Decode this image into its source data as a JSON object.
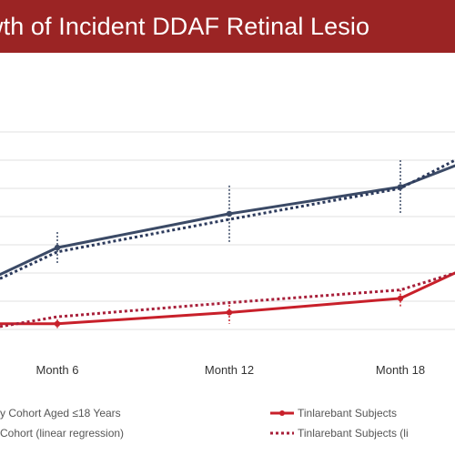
{
  "chart_data": {
    "type": "line",
    "title": "wth of Incident DDAF Retinal Lesio",
    "categories": [
      "",
      "Month 6",
      "Month 12",
      "Month 18",
      ""
    ],
    "x": [
      0,
      6,
      12,
      18,
      24
    ],
    "ylim": [
      0,
      1
    ],
    "grid": true,
    "legend_position": "bottom",
    "series": [
      {
        "name": "y Cohort Aged ≤18 Years",
        "role": "observed",
        "color": "#3b4a66",
        "style": "solid",
        "x": [
          0,
          6,
          12,
          18,
          24
        ],
        "values": [
          0.495,
          0.59,
          0.71,
          0.805,
          0.88
        ],
        "error": [
          null,
          0.055,
          0.1,
          0.095,
          null
        ]
      },
      {
        "name": "Cohort (linear regression)",
        "role": "regression",
        "color": "#2c3a5c",
        "style": "dotted",
        "x": [
          0,
          6,
          12,
          18,
          24
        ],
        "values": [
          0.48,
          0.575,
          0.69,
          0.8,
          0.9
        ]
      },
      {
        "name": "Tinlarebant Subjects",
        "role": "observed",
        "color": "#c8202a",
        "style": "solid",
        "x": [
          0,
          6,
          12,
          18,
          24
        ],
        "values": [
          0.32,
          0.32,
          0.36,
          0.41,
          0.5
        ],
        "error": [
          null,
          0.015,
          0.04,
          0.03,
          null
        ]
      },
      {
        "name": "Tinlarebant Subjects (li",
        "role": "regression",
        "color": "#a8203a",
        "style": "dotted",
        "x": [
          0,
          6,
          12,
          18,
          24
        ],
        "values": [
          0.31,
          0.345,
          0.395,
          0.44,
          0.5
        ]
      }
    ]
  }
}
